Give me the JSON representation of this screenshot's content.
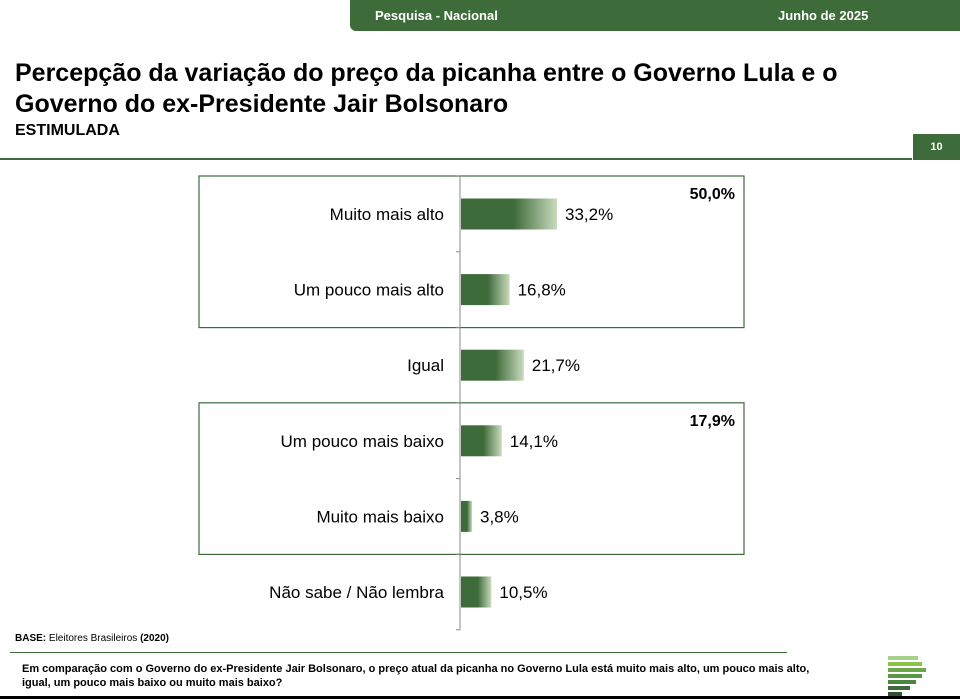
{
  "header": {
    "survey_label": "Pesquisa - Nacional",
    "date_label": "Junho de 2025",
    "page_number": "10"
  },
  "title": "Percepção da variação do preço da picanha entre o Governo Lula e o Governo do ex-Presidente Jair Bolsonaro",
  "subtitle": "ESTIMULADA",
  "footer": {
    "base_label": "BASE:",
    "base_text": "Eleitores Brasileiros",
    "base_year": "(2020)",
    "question": "Em comparação com o Governo do ex-Presidente Jair Bolsonaro, o preço atual da picanha no Governo Lula está muito mais alto, um pouco mais alto, igual, um pouco mais baixo ou muito mais baixo?"
  },
  "colors": {
    "brand_green": "#3e6b3a",
    "bar_dark": "#3e6b3a",
    "bar_light": "#c9dbbd"
  },
  "chart_data": {
    "type": "bar",
    "orientation": "horizontal",
    "categories": [
      "Muito mais alto",
      "Um pouco mais alto",
      "Igual",
      "Um pouco mais baixo",
      "Muito mais baixo",
      "Não sabe / Não lembra"
    ],
    "values": [
      33.2,
      16.8,
      21.7,
      14.1,
      3.8,
      10.5
    ],
    "value_labels": [
      "33,2%",
      "16,8%",
      "21,7%",
      "14,1%",
      "3,8%",
      "10,5%"
    ],
    "groups": [
      {
        "total_label": "50,0%",
        "from": 0,
        "to": 1
      },
      {
        "total_label": "17,9%",
        "from": 3,
        "to": 4
      }
    ],
    "xlim": [
      0,
      100
    ],
    "grid": false,
    "legend": "none"
  }
}
